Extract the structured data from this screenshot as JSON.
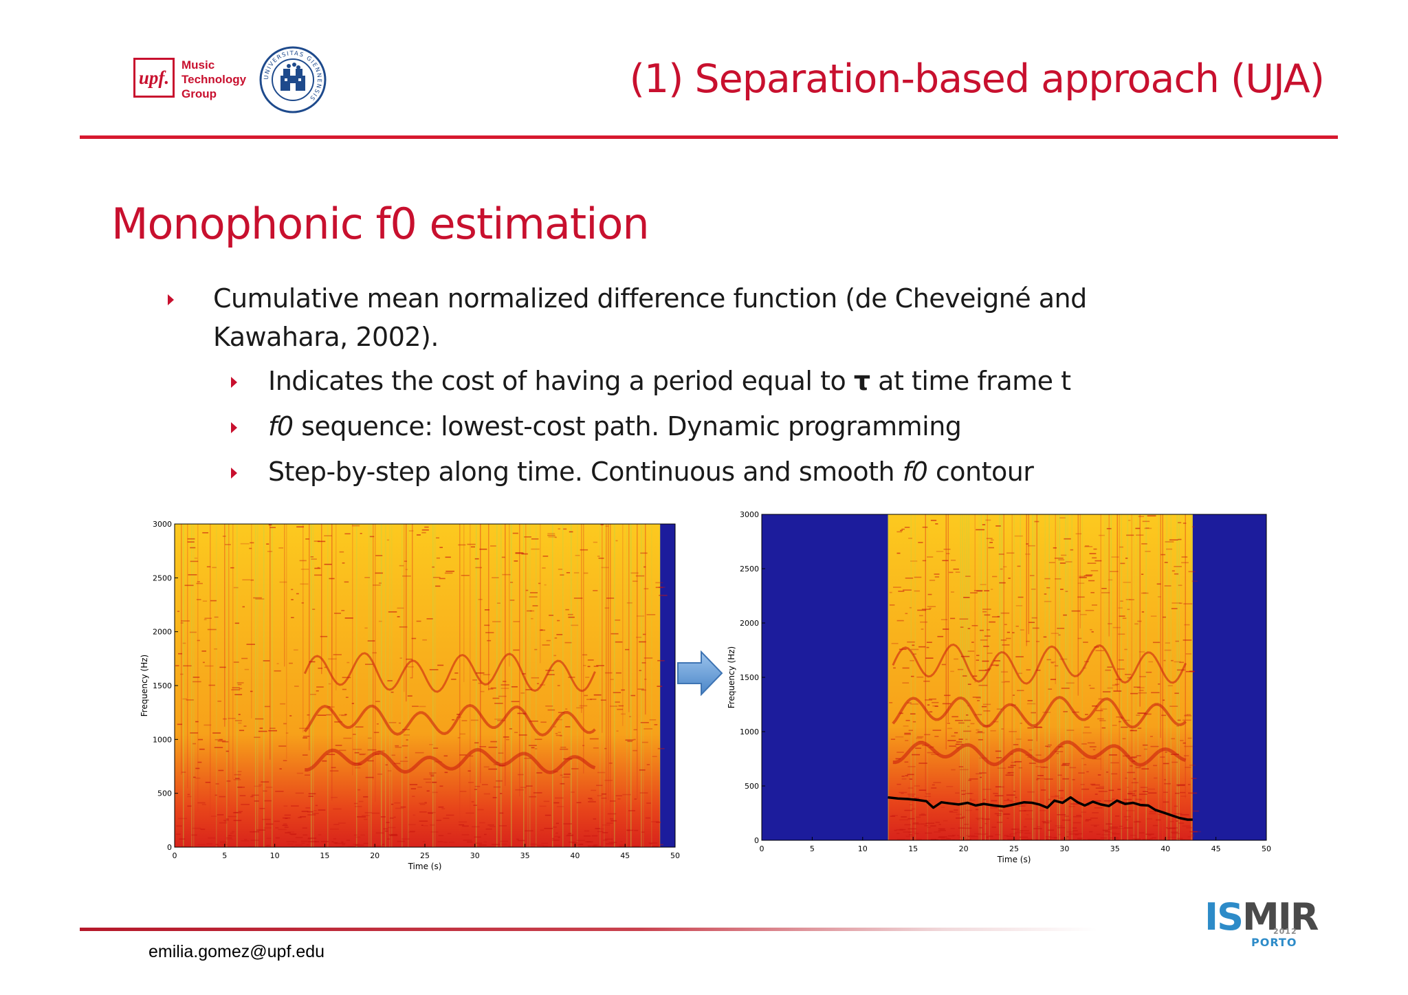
{
  "header": {
    "upf_logo": {
      "mark": "upf.",
      "lines": [
        "Music",
        "Technology",
        "Group"
      ]
    },
    "seal": {
      "icon": "university-seal-icon",
      "text": "UNIVERSITAS GIENNENSIS"
    },
    "title": "(1) Separation-based approach (UJA)"
  },
  "slide": {
    "title": "Monophonic f0 estimation",
    "bullets": [
      {
        "text_line1": "Cumulative mean normalized difference function (de Cheveigné and",
        "text_line2": "Kawahara, 2002)."
      }
    ],
    "subbullets": [
      {
        "before": "Indicates the cost of having a period equal to ",
        "symbol": "τ",
        "after": " at time frame t"
      },
      {
        "italic": "f0",
        "after": " sequence: lowest-cost path. Dynamic programming"
      },
      {
        "before": "Step-by-step along time. Continuous and smooth ",
        "italic": "f0",
        "after": " contour"
      }
    ]
  },
  "chart_data": [
    {
      "type": "heatmap",
      "xlabel": "Time (s)",
      "ylabel": "Frequency (Hz)",
      "xlim": [
        0,
        50
      ],
      "ylim": [
        0,
        3000
      ],
      "xticks": [
        "0",
        "5",
        "10",
        "15",
        "20",
        "25",
        "30",
        "35",
        "40",
        "45",
        "50"
      ],
      "yticks": [
        "0",
        "500",
        "1000",
        "1500",
        "2000",
        "2500",
        "3000"
      ],
      "signal_range_s": [
        0,
        48.5
      ],
      "background_color": "#1c1c9c",
      "f0_contour": null
    },
    {
      "type": "heatmap",
      "xlabel": "Time (s)",
      "ylabel": "Frequency (Hz)",
      "xlim": [
        0,
        50
      ],
      "ylim": [
        0,
        3000
      ],
      "xticks": [
        "0",
        "5",
        "10",
        "15",
        "20",
        "25",
        "30",
        "35",
        "40",
        "45",
        "50"
      ],
      "yticks": [
        "0",
        "500",
        "1000",
        "1500",
        "2000",
        "2500",
        "3000"
      ],
      "signal_range_s": [
        12.5,
        42.7
      ],
      "background_color": "#1c1c9c",
      "f0_contour": {
        "x": [
          12.5,
          13.5,
          14.5,
          15.5,
          16.3,
          17,
          17.8,
          18.6,
          19.5,
          20.4,
          21.2,
          22,
          23,
          24,
          25,
          26,
          26.8,
          27.5,
          28.3,
          29,
          29.8,
          30.6,
          31.3,
          32,
          32.8,
          33.6,
          34.4,
          35.2,
          36,
          36.8,
          37.5,
          38.3,
          39,
          39.8,
          40.6,
          41.4,
          42.2,
          42.7
        ],
        "y": [
          395,
          385,
          380,
          370,
          360,
          300,
          350,
          340,
          330,
          345,
          320,
          335,
          320,
          310,
          330,
          350,
          345,
          330,
          300,
          365,
          345,
          395,
          350,
          320,
          355,
          330,
          315,
          365,
          335,
          345,
          325,
          320,
          280,
          255,
          230,
          205,
          190,
          190
        ]
      }
    }
  ],
  "arrow": {
    "icon": "right-arrow-icon",
    "color": "#5c9bd6"
  },
  "footer": {
    "email": "emilia.gomez@upf.edu",
    "logo": {
      "part1": "IS",
      "part2": "M",
      "part3": "IR",
      "year": "2012",
      "city": "PORTO",
      "color_is": "#2d8bc8",
      "color_mir": "#4a4a4a"
    }
  }
}
